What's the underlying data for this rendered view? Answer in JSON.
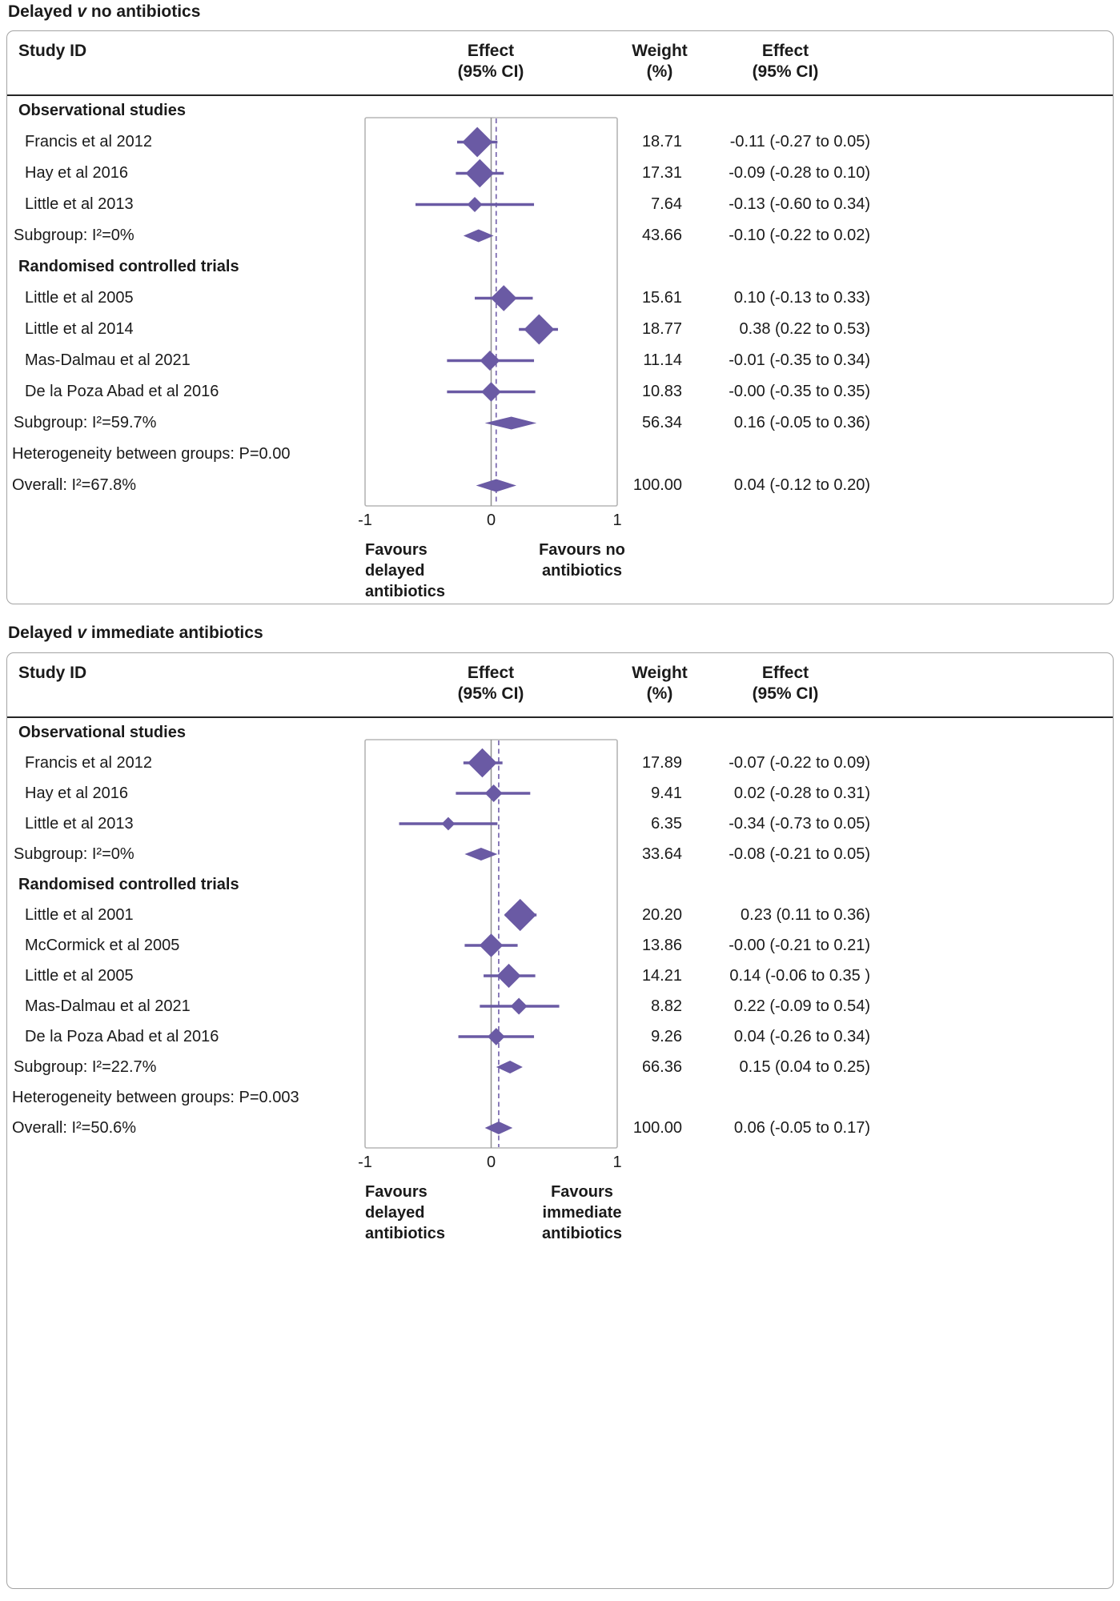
{
  "figure_style": {
    "background": "#ffffff",
    "text": "#1a1a1a",
    "panel_border": "#a3a3a3",
    "header_rule": "#262626",
    "plot_frame": "#b5b5b5",
    "zero_line": "#909090",
    "marker": "#6a5aa4",
    "ci_line": "#6a5aa4",
    "ref_line": "#7867ae"
  },
  "chart_data": [
    {
      "type": "forest",
      "title": "Delayed v no antibiotics",
      "title_parts": {
        "prefix": "Delayed ",
        "versus": "v",
        "suffix": " no antibiotics"
      },
      "columns": {
        "study": "Study ID",
        "effect_plot": [
          "Effect",
          "(95% CI)"
        ],
        "weight": [
          "Weight",
          "(%)"
        ],
        "effect_text": [
          "Effect",
          "(95% CI)"
        ]
      },
      "xlim": [
        -1,
        1
      ],
      "ticks": [
        -1,
        0,
        1
      ],
      "ref_line": 0,
      "overall_ref_line": 0.04,
      "favours_left_lines": [
        "Favours",
        "delayed",
        "antibiotics"
      ],
      "favours_right_lines": [
        "Favours no",
        "antibiotics"
      ],
      "rows": [
        {
          "kind": "group",
          "label": "Observational studies"
        },
        {
          "kind": "study",
          "label": "Francis et al 2012",
          "est": -0.11,
          "lo": -0.27,
          "hi": 0.05,
          "weight": 18.71,
          "weight_text": "18.71",
          "effect_text": "-0.11 (-0.27 to 0.05)"
        },
        {
          "kind": "study",
          "label": "Hay et al 2016",
          "est": -0.09,
          "lo": -0.28,
          "hi": 0.1,
          "weight": 17.31,
          "weight_text": "17.31",
          "effect_text": "-0.09 (-0.28 to 0.10)"
        },
        {
          "kind": "study",
          "label": "Little et al 2013",
          "est": -0.13,
          "lo": -0.6,
          "hi": 0.34,
          "weight": 7.64,
          "weight_text": "7.64",
          "effect_text": "-0.13 (-0.60 to 0.34)"
        },
        {
          "kind": "subgroup",
          "label": "Subgroup: I²=0%",
          "est": -0.1,
          "lo": -0.22,
          "hi": 0.02,
          "weight": 43.66,
          "weight_text": "43.66",
          "effect_text": "-0.10 (-0.22 to 0.02)"
        },
        {
          "kind": "group",
          "label": "Randomised controlled trials"
        },
        {
          "kind": "study",
          "label": "Little et al 2005",
          "est": 0.1,
          "lo": -0.13,
          "hi": 0.33,
          "weight": 15.61,
          "weight_text": "15.61",
          "effect_text": "0.10 (-0.13 to 0.33)"
        },
        {
          "kind": "study",
          "label": "Little et al 2014",
          "est": 0.38,
          "lo": 0.22,
          "hi": 0.53,
          "weight": 18.77,
          "weight_text": "18.77",
          "effect_text": "0.38 (0.22 to 0.53)"
        },
        {
          "kind": "study",
          "label": "Mas-Dalmau et al 2021",
          "est": -0.01,
          "lo": -0.35,
          "hi": 0.34,
          "weight": 11.14,
          "weight_text": "11.14",
          "effect_text": "-0.01 (-0.35 to 0.34)"
        },
        {
          "kind": "study",
          "label": "De la Poza Abad et al 2016",
          "est": 0.0,
          "lo": -0.35,
          "hi": 0.35,
          "weight": 10.83,
          "weight_text": "10.83",
          "effect_text": "-0.00 (-0.35 to 0.35)"
        },
        {
          "kind": "subgroup",
          "label": "Subgroup: I²=59.7%",
          "est": 0.16,
          "lo": -0.05,
          "hi": 0.36,
          "weight": 56.34,
          "weight_text": "56.34",
          "effect_text": "0.16 (-0.05 to 0.36)"
        },
        {
          "kind": "text",
          "label": "Heterogeneity between groups: P=0.00"
        },
        {
          "kind": "overall",
          "label": "Overall: I²=67.8%",
          "est": 0.04,
          "lo": -0.12,
          "hi": 0.2,
          "weight": 100.0,
          "weight_text": "100.00",
          "effect_text": "0.04 (-0.12 to 0.20)"
        }
      ]
    },
    {
      "type": "forest",
      "title": "Delayed v immediate antibiotics",
      "title_parts": {
        "prefix": "Delayed ",
        "versus": "v",
        "suffix": " immediate antibiotics"
      },
      "columns": {
        "study": "Study ID",
        "effect_plot": [
          "Effect",
          "(95% CI)"
        ],
        "weight": [
          "Weight",
          "(%)"
        ],
        "effect_text": [
          "Effect",
          "(95% CI)"
        ]
      },
      "xlim": [
        -1,
        1
      ],
      "ticks": [
        -1,
        0,
        1
      ],
      "ref_line": 0,
      "overall_ref_line": 0.06,
      "favours_left_lines": [
        "Favours",
        "delayed",
        "antibiotics"
      ],
      "favours_right_lines": [
        "Favours",
        "immediate",
        "antibiotics"
      ],
      "rows": [
        {
          "kind": "group",
          "label": "Observational studies"
        },
        {
          "kind": "study",
          "label": "Francis et al 2012",
          "est": -0.07,
          "lo": -0.22,
          "hi": 0.09,
          "weight": 17.89,
          "weight_text": "17.89",
          "effect_text": "-0.07 (-0.22 to 0.09)"
        },
        {
          "kind": "study",
          "label": "Hay et al 2016",
          "est": 0.02,
          "lo": -0.28,
          "hi": 0.31,
          "weight": 9.41,
          "weight_text": "9.41",
          "effect_text": "0.02 (-0.28 to 0.31)"
        },
        {
          "kind": "study",
          "label": "Little et al 2013",
          "est": -0.34,
          "lo": -0.73,
          "hi": 0.05,
          "weight": 6.35,
          "weight_text": "6.35",
          "effect_text": "-0.34 (-0.73 to 0.05)"
        },
        {
          "kind": "subgroup",
          "label": "Subgroup: I²=0%",
          "est": -0.08,
          "lo": -0.21,
          "hi": 0.05,
          "weight": 33.64,
          "weight_text": "33.64",
          "effect_text": "-0.08 (-0.21 to 0.05)"
        },
        {
          "kind": "group",
          "label": "Randomised controlled trials"
        },
        {
          "kind": "study",
          "label": "Little et al 2001",
          "est": 0.23,
          "lo": 0.11,
          "hi": 0.36,
          "weight": 20.2,
          "weight_text": "20.20",
          "effect_text": "0.23 (0.11 to 0.36)"
        },
        {
          "kind": "study",
          "label": "McCormick et al 2005",
          "est": 0.0,
          "lo": -0.21,
          "hi": 0.21,
          "weight": 13.86,
          "weight_text": "13.86",
          "effect_text": "-0.00 (-0.21 to 0.21)"
        },
        {
          "kind": "study",
          "label": "Little et al 2005",
          "est": 0.14,
          "lo": -0.06,
          "hi": 0.35,
          "weight": 14.21,
          "weight_text": "14.21",
          "effect_text": "0.14 (-0.06 to 0.35 )"
        },
        {
          "kind": "study",
          "label": "Mas-Dalmau et al 2021",
          "est": 0.22,
          "lo": -0.09,
          "hi": 0.54,
          "weight": 8.82,
          "weight_text": "8.82",
          "effect_text": "0.22 (-0.09 to 0.54)"
        },
        {
          "kind": "study",
          "label": "De la Poza Abad et al 2016",
          "est": 0.04,
          "lo": -0.26,
          "hi": 0.34,
          "weight": 9.26,
          "weight_text": "9.26",
          "effect_text": "0.04 (-0.26 to 0.34)"
        },
        {
          "kind": "subgroup",
          "label": "Subgroup: I²=22.7%",
          "est": 0.15,
          "lo": 0.04,
          "hi": 0.25,
          "weight": 66.36,
          "weight_text": "66.36",
          "effect_text": "0.15 (0.04 to 0.25)"
        },
        {
          "kind": "text",
          "label": "Heterogeneity between groups: P=0.003"
        },
        {
          "kind": "overall",
          "label": "Overall: I²=50.6%",
          "est": 0.06,
          "lo": -0.05,
          "hi": 0.17,
          "weight": 100.0,
          "weight_text": "100.00",
          "effect_text": "0.06 (-0.05 to 0.17)"
        }
      ]
    }
  ]
}
